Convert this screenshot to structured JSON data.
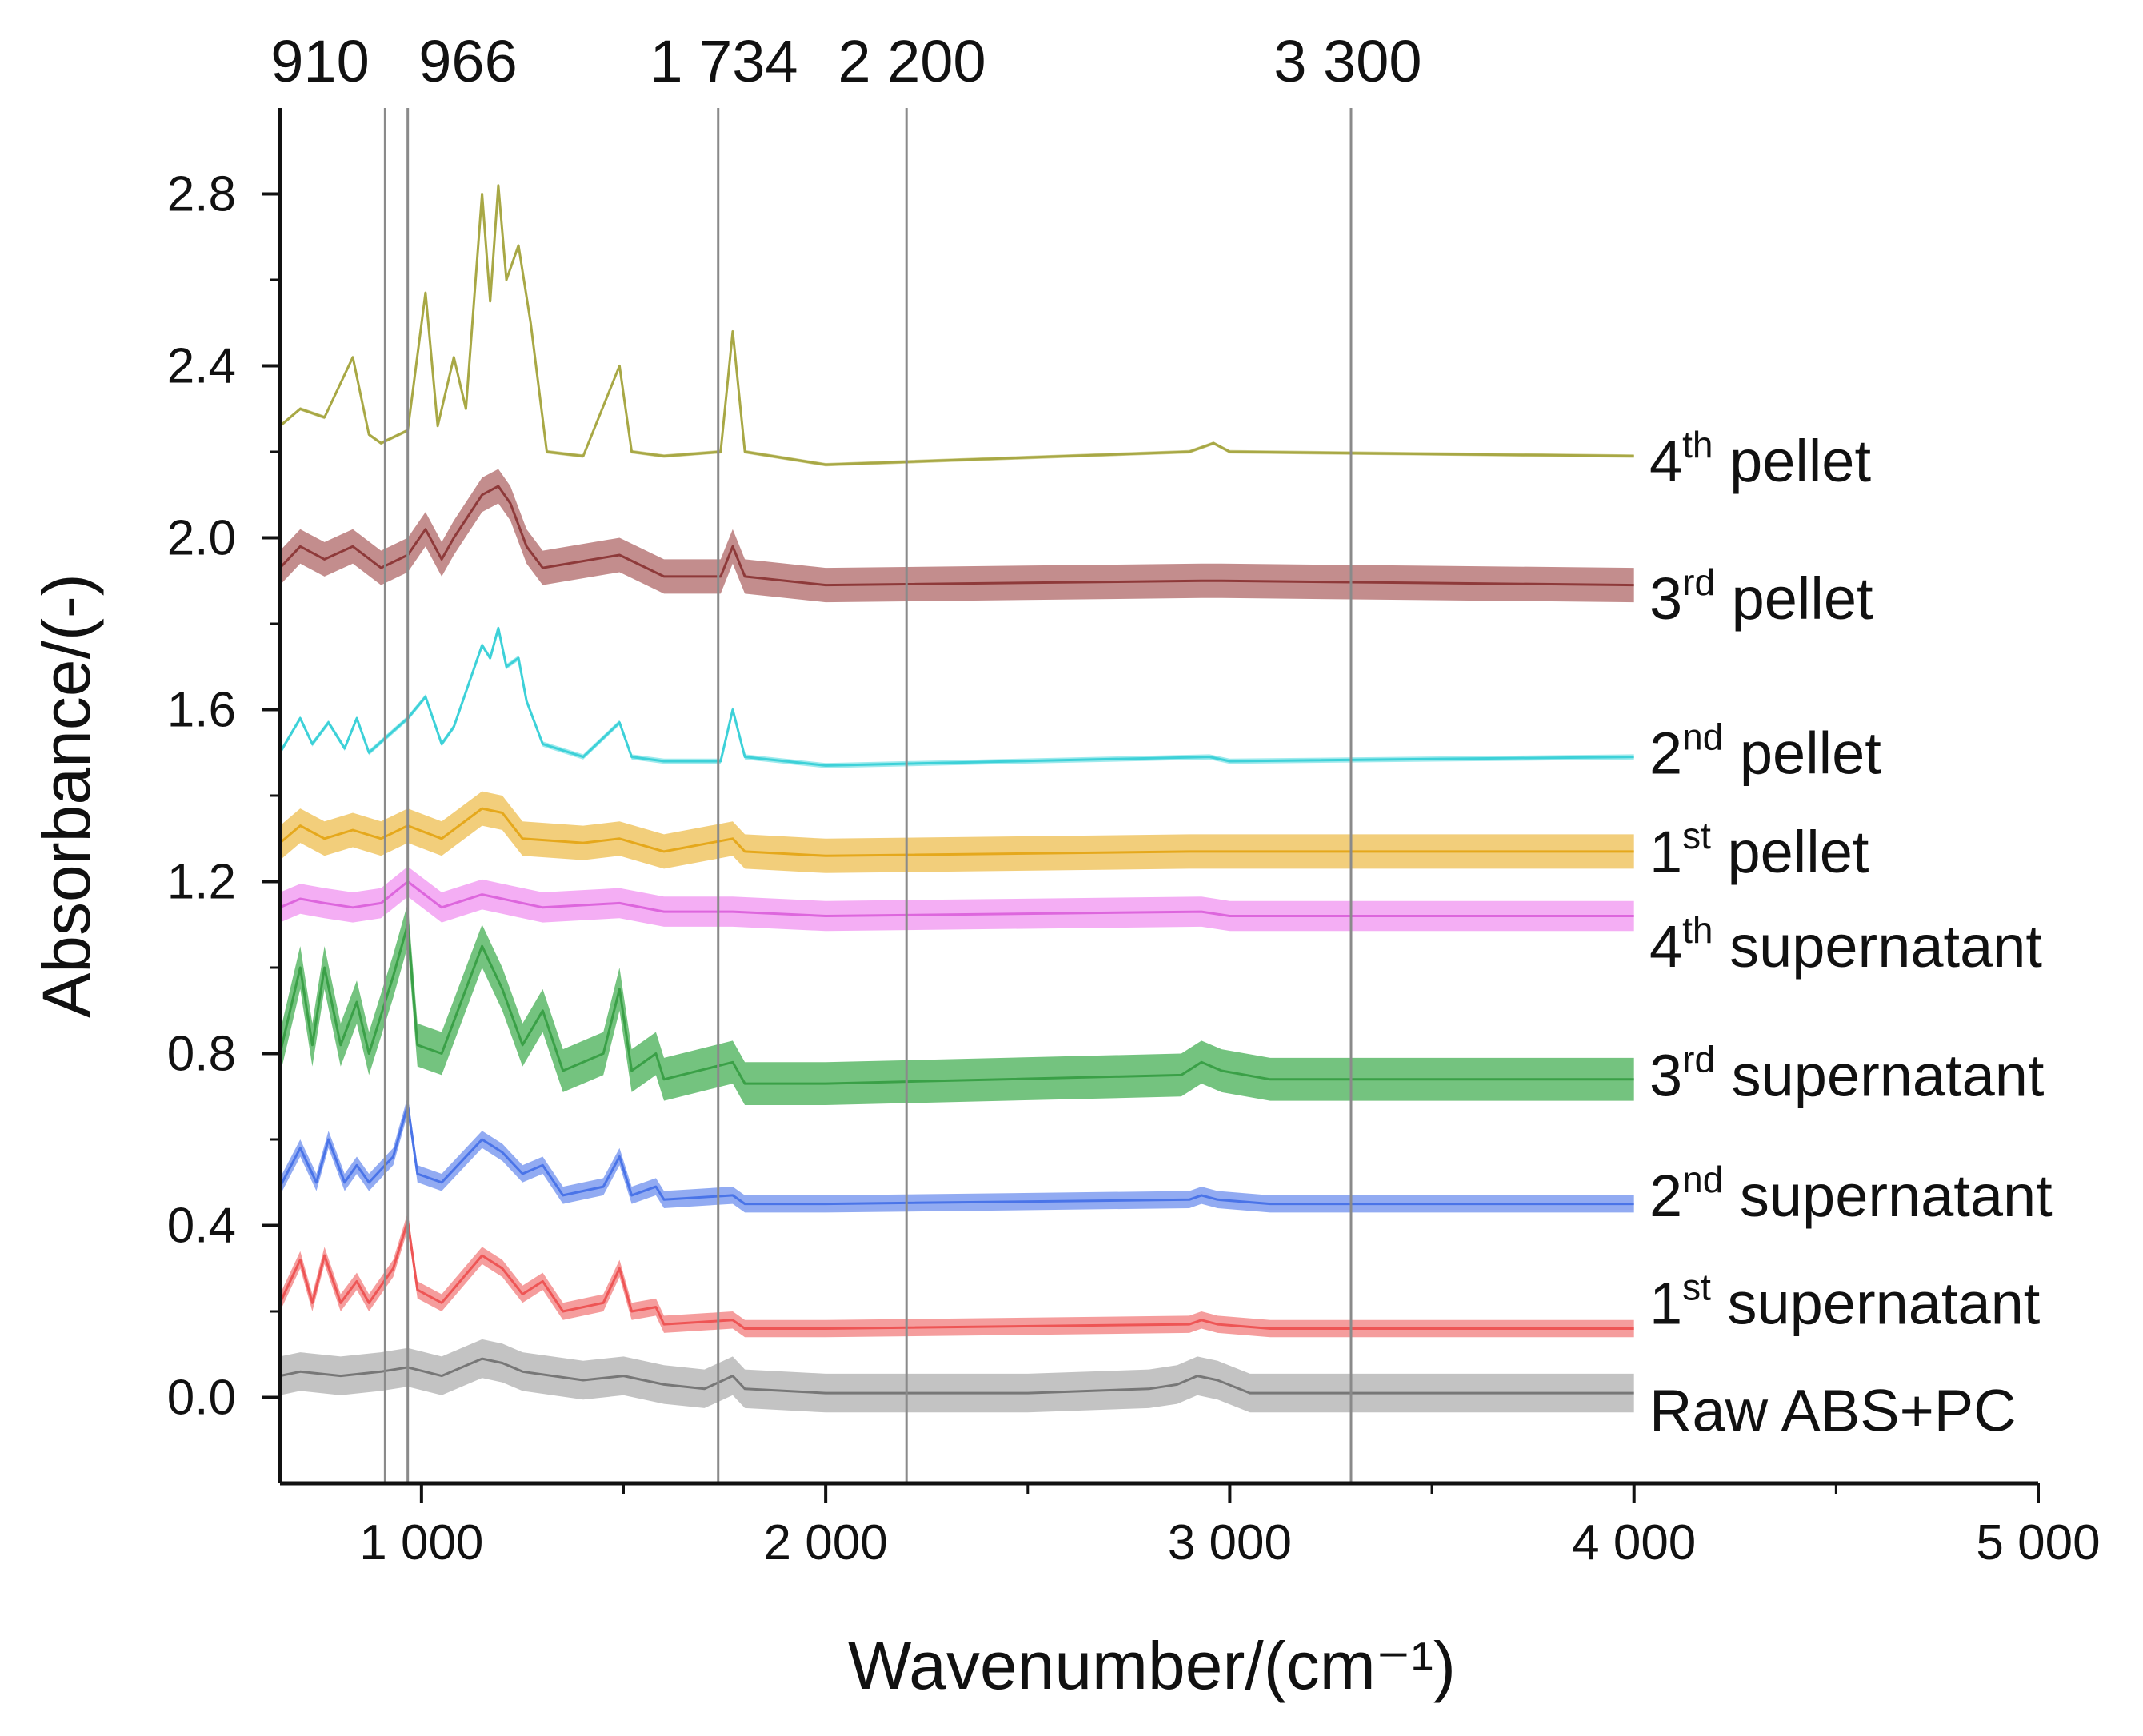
{
  "chart_data": {
    "type": "line",
    "title": "",
    "xlabel": "Wavenumber/(cm⁻¹)",
    "ylabel": "Absorbance/(-)",
    "xlim": [
      650,
      5000
    ],
    "ylim": [
      -0.2,
      3.0
    ],
    "x_ticks": [
      1000,
      2000,
      3000,
      4000,
      5000
    ],
    "x_tick_labels": [
      "1 000",
      "2 000",
      "3 000",
      "4 000",
      "5 000"
    ],
    "y_ticks": [
      0.0,
      0.4,
      0.8,
      1.2,
      1.6,
      2.0,
      2.4,
      2.8
    ],
    "y_tick_labels": [
      "0.0",
      "0.4",
      "0.8",
      "1.2",
      "1.6",
      "2.0",
      "2.4",
      "2.8"
    ],
    "grid": false,
    "legend": "right, labels aligned with curve ends",
    "reference_lines": [
      {
        "x": 910,
        "label": "910"
      },
      {
        "x": 966,
        "label": "966"
      },
      {
        "x": 1734,
        "label": "1 734"
      },
      {
        "x": 2200,
        "label": "2 200"
      },
      {
        "x": 3300,
        "label": "3 300"
      }
    ],
    "series": [
      {
        "name": "Raw ABS+PC",
        "ordinal": "",
        "suffix": "Raw ABS+PC",
        "label_y": -0.03,
        "color": "#777777",
        "band_color": "#b9b9b9",
        "band": 0.045,
        "points": [
          [
            650,
            0.05
          ],
          [
            700,
            0.06
          ],
          [
            800,
            0.05
          ],
          [
            900,
            0.06
          ],
          [
            966,
            0.07
          ],
          [
            1050,
            0.05
          ],
          [
            1150,
            0.09
          ],
          [
            1200,
            0.08
          ],
          [
            1250,
            0.06
          ],
          [
            1400,
            0.04
          ],
          [
            1500,
            0.05
          ],
          [
            1600,
            0.03
          ],
          [
            1700,
            0.02
          ],
          [
            1770,
            0.05
          ],
          [
            1800,
            0.02
          ],
          [
            2000,
            0.01
          ],
          [
            2500,
            0.01
          ],
          [
            2800,
            0.02
          ],
          [
            2870,
            0.03
          ],
          [
            2920,
            0.05
          ],
          [
            2970,
            0.04
          ],
          [
            3050,
            0.01
          ],
          [
            3500,
            0.01
          ],
          [
            4000,
            0.01
          ]
        ]
      },
      {
        "name": "1st supernatant",
        "ordinal": "1",
        "sup": "st",
        "suffix": "supernatant",
        "label_y": 0.22,
        "color": "#ee5555",
        "band_color": "#f38c8c",
        "band": 0.02,
        "points": [
          [
            650,
            0.22
          ],
          [
            700,
            0.32
          ],
          [
            730,
            0.22
          ],
          [
            760,
            0.33
          ],
          [
            800,
            0.22
          ],
          [
            840,
            0.27
          ],
          [
            870,
            0.22
          ],
          [
            930,
            0.3
          ],
          [
            966,
            0.41
          ],
          [
            990,
            0.25
          ],
          [
            1050,
            0.22
          ],
          [
            1150,
            0.33
          ],
          [
            1200,
            0.3
          ],
          [
            1250,
            0.24
          ],
          [
            1300,
            0.27
          ],
          [
            1350,
            0.2
          ],
          [
            1450,
            0.22
          ],
          [
            1490,
            0.3
          ],
          [
            1520,
            0.2
          ],
          [
            1580,
            0.21
          ],
          [
            1600,
            0.17
          ],
          [
            1770,
            0.18
          ],
          [
            1800,
            0.16
          ],
          [
            2000,
            0.16
          ],
          [
            2900,
            0.17
          ],
          [
            2930,
            0.18
          ],
          [
            2970,
            0.17
          ],
          [
            3100,
            0.16
          ],
          [
            4000,
            0.16
          ]
        ]
      },
      {
        "name": "2nd supernatant",
        "ordinal": "2",
        "sup": "nd",
        "suffix": "supernatant",
        "label_y": 0.47,
        "color": "#4a74e8",
        "band_color": "#7f9cf0",
        "band": 0.02,
        "points": [
          [
            650,
            0.49
          ],
          [
            700,
            0.58
          ],
          [
            740,
            0.5
          ],
          [
            770,
            0.6
          ],
          [
            810,
            0.5
          ],
          [
            840,
            0.54
          ],
          [
            870,
            0.5
          ],
          [
            930,
            0.56
          ],
          [
            966,
            0.68
          ],
          [
            990,
            0.52
          ],
          [
            1050,
            0.5
          ],
          [
            1150,
            0.6
          ],
          [
            1200,
            0.57
          ],
          [
            1250,
            0.52
          ],
          [
            1300,
            0.54
          ],
          [
            1350,
            0.47
          ],
          [
            1450,
            0.49
          ],
          [
            1490,
            0.56
          ],
          [
            1520,
            0.47
          ],
          [
            1580,
            0.49
          ],
          [
            1600,
            0.46
          ],
          [
            1770,
            0.47
          ],
          [
            1800,
            0.45
          ],
          [
            2000,
            0.45
          ],
          [
            2900,
            0.46
          ],
          [
            2930,
            0.47
          ],
          [
            2970,
            0.46
          ],
          [
            3100,
            0.45
          ],
          [
            4000,
            0.45
          ]
        ]
      },
      {
        "name": "3rd supernatant",
        "ordinal": "3",
        "sup": "rd",
        "suffix": "supernatant",
        "label_y": 0.75,
        "color": "#3aa047",
        "band_color": "#5cb868",
        "band": 0.05,
        "points": [
          [
            650,
            0.8
          ],
          [
            700,
            1.0
          ],
          [
            730,
            0.82
          ],
          [
            760,
            1.0
          ],
          [
            800,
            0.82
          ],
          [
            840,
            0.92
          ],
          [
            870,
            0.8
          ],
          [
            930,
            0.98
          ],
          [
            966,
            1.1
          ],
          [
            990,
            0.82
          ],
          [
            1050,
            0.8
          ],
          [
            1150,
            1.05
          ],
          [
            1200,
            0.95
          ],
          [
            1250,
            0.82
          ],
          [
            1300,
            0.9
          ],
          [
            1350,
            0.76
          ],
          [
            1450,
            0.8
          ],
          [
            1490,
            0.95
          ],
          [
            1520,
            0.76
          ],
          [
            1580,
            0.8
          ],
          [
            1600,
            0.74
          ],
          [
            1770,
            0.78
          ],
          [
            1800,
            0.73
          ],
          [
            2000,
            0.73
          ],
          [
            2880,
            0.75
          ],
          [
            2930,
            0.78
          ],
          [
            2980,
            0.76
          ],
          [
            3100,
            0.74
          ],
          [
            4000,
            0.74
          ]
        ]
      },
      {
        "name": "4th supernatant",
        "ordinal": "4",
        "sup": "th",
        "suffix": "supernatant",
        "label_y": 1.05,
        "color": "#dd66dd",
        "band_color": "#f2a0f2",
        "band": 0.035,
        "points": [
          [
            650,
            1.14
          ],
          [
            700,
            1.16
          ],
          [
            760,
            1.15
          ],
          [
            830,
            1.14
          ],
          [
            900,
            1.15
          ],
          [
            966,
            1.2
          ],
          [
            1050,
            1.14
          ],
          [
            1150,
            1.17
          ],
          [
            1200,
            1.16
          ],
          [
            1300,
            1.14
          ],
          [
            1490,
            1.15
          ],
          [
            1600,
            1.13
          ],
          [
            1770,
            1.13
          ],
          [
            2000,
            1.12
          ],
          [
            2930,
            1.13
          ],
          [
            3000,
            1.12
          ],
          [
            4000,
            1.12
          ]
        ]
      },
      {
        "name": "1st pellet",
        "ordinal": "1",
        "sup": "st",
        "suffix": "pellet",
        "label_y": 1.27,
        "color": "#e5a81c",
        "band_color": "#f0c664",
        "band": 0.04,
        "points": [
          [
            650,
            1.29
          ],
          [
            700,
            1.33
          ],
          [
            760,
            1.3
          ],
          [
            830,
            1.32
          ],
          [
            900,
            1.3
          ],
          [
            966,
            1.33
          ],
          [
            1050,
            1.3
          ],
          [
            1150,
            1.37
          ],
          [
            1200,
            1.36
          ],
          [
            1250,
            1.3
          ],
          [
            1400,
            1.29
          ],
          [
            1490,
            1.3
          ],
          [
            1600,
            1.27
          ],
          [
            1770,
            1.3
          ],
          [
            1800,
            1.27
          ],
          [
            2000,
            1.26
          ],
          [
            2900,
            1.27
          ],
          [
            2950,
            1.27
          ],
          [
            4000,
            1.27
          ]
        ]
      },
      {
        "name": "2nd pellet",
        "ordinal": "2",
        "sup": "nd",
        "suffix": "pellet",
        "label_y": 1.5,
        "color": "#3dd1d8",
        "band_color": "#8ee6ea",
        "band": 0.006,
        "points": [
          [
            650,
            1.5
          ],
          [
            700,
            1.58
          ],
          [
            730,
            1.52
          ],
          [
            770,
            1.57
          ],
          [
            810,
            1.51
          ],
          [
            840,
            1.58
          ],
          [
            870,
            1.5
          ],
          [
            966,
            1.58
          ],
          [
            1010,
            1.63
          ],
          [
            1050,
            1.52
          ],
          [
            1080,
            1.56
          ],
          [
            1150,
            1.75
          ],
          [
            1170,
            1.72
          ],
          [
            1190,
            1.79
          ],
          [
            1210,
            1.7
          ],
          [
            1240,
            1.72
          ],
          [
            1260,
            1.62
          ],
          [
            1300,
            1.52
          ],
          [
            1400,
            1.49
          ],
          [
            1490,
            1.57
          ],
          [
            1520,
            1.49
          ],
          [
            1600,
            1.48
          ],
          [
            1740,
            1.48
          ],
          [
            1770,
            1.6
          ],
          [
            1800,
            1.49
          ],
          [
            2000,
            1.47
          ],
          [
            2950,
            1.49
          ],
          [
            3000,
            1.48
          ],
          [
            4000,
            1.49
          ]
        ]
      },
      {
        "name": "3rd pellet",
        "ordinal": "3",
        "sup": "rd",
        "suffix": "pellet",
        "label_y": 1.86,
        "color": "#8e3a3a",
        "band_color": "#b97979",
        "band": 0.04,
        "points": [
          [
            650,
            1.93
          ],
          [
            700,
            1.98
          ],
          [
            760,
            1.95
          ],
          [
            830,
            1.98
          ],
          [
            900,
            1.93
          ],
          [
            966,
            1.96
          ],
          [
            1010,
            2.02
          ],
          [
            1050,
            1.95
          ],
          [
            1080,
            2.0
          ],
          [
            1150,
            2.1
          ],
          [
            1190,
            2.12
          ],
          [
            1220,
            2.08
          ],
          [
            1260,
            1.98
          ],
          [
            1300,
            1.93
          ],
          [
            1490,
            1.96
          ],
          [
            1600,
            1.91
          ],
          [
            1740,
            1.91
          ],
          [
            1770,
            1.98
          ],
          [
            1800,
            1.91
          ],
          [
            2000,
            1.89
          ],
          [
            2930,
            1.9
          ],
          [
            2980,
            1.9
          ],
          [
            4000,
            1.89
          ]
        ]
      },
      {
        "name": "4th pellet",
        "ordinal": "4",
        "sup": "th",
        "suffix": "pellet",
        "label_y": 2.18,
        "color": "#a8a845",
        "band_color": "#c8c880",
        "band": 0.004,
        "points": [
          [
            650,
            2.26
          ],
          [
            700,
            2.3
          ],
          [
            760,
            2.28
          ],
          [
            830,
            2.42
          ],
          [
            870,
            2.24
          ],
          [
            900,
            2.22
          ],
          [
            966,
            2.25
          ],
          [
            1010,
            2.57
          ],
          [
            1040,
            2.26
          ],
          [
            1080,
            2.42
          ],
          [
            1110,
            2.3
          ],
          [
            1150,
            2.8
          ],
          [
            1170,
            2.55
          ],
          [
            1190,
            2.82
          ],
          [
            1210,
            2.6
          ],
          [
            1240,
            2.68
          ],
          [
            1270,
            2.5
          ],
          [
            1310,
            2.2
          ],
          [
            1400,
            2.19
          ],
          [
            1490,
            2.4
          ],
          [
            1520,
            2.2
          ],
          [
            1600,
            2.19
          ],
          [
            1740,
            2.2
          ],
          [
            1770,
            2.48
          ],
          [
            1800,
            2.2
          ],
          [
            2000,
            2.17
          ],
          [
            2900,
            2.2
          ],
          [
            2960,
            2.22
          ],
          [
            3000,
            2.2
          ],
          [
            4000,
            2.19
          ]
        ]
      }
    ]
  }
}
